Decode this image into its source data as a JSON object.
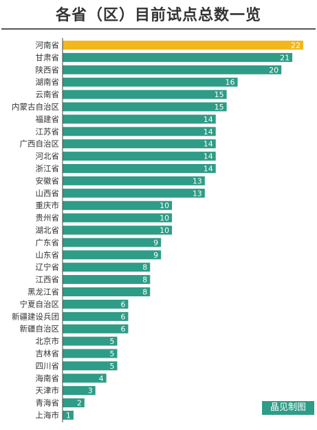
{
  "chart_data": {
    "type": "bar",
    "orientation": "horizontal",
    "title": "各省（区）目前试点总数一览",
    "categories": [
      "河南省",
      "甘肃省",
      "陕西省",
      "湖南省",
      "云南省",
      "内蒙古自治区",
      "福建省",
      "江苏省",
      "广西自治区",
      "河北省",
      "浙江省",
      "安徽省",
      "山西省",
      "重庆市",
      "贵州省",
      "湖北省",
      "广东省",
      "山东省",
      "辽宁省",
      "江西省",
      "黑龙江省",
      "宁夏自治区",
      "新疆建设兵团",
      "新疆自治区",
      "北京市",
      "吉林省",
      "四川省",
      "海南省",
      "天津市",
      "青海省",
      "上海市"
    ],
    "values": [
      22,
      21,
      20,
      16,
      15,
      15,
      14,
      14,
      14,
      14,
      14,
      13,
      13,
      10,
      10,
      10,
      9,
      9,
      8,
      8,
      8,
      6,
      6,
      6,
      5,
      5,
      5,
      4,
      3,
      2,
      1
    ],
    "xlim": [
      0,
      22
    ],
    "highlight_index": 0,
    "colors": {
      "bar": "#2e9c86",
      "highlight": "#f3b71c",
      "axis": "#444444",
      "label": "#333333"
    }
  },
  "watermark": "晶见制图"
}
